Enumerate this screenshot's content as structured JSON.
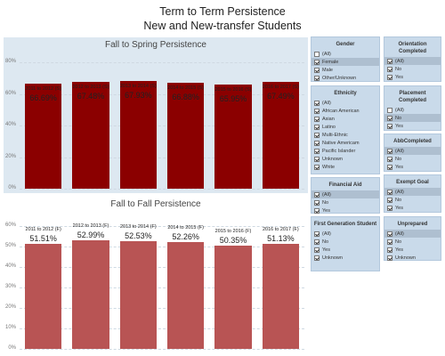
{
  "header": {
    "title_line1": "Term to Term Persistence",
    "title_line2": "New and New-transfer Students"
  },
  "colors": {
    "spring_bar": "#8b0000",
    "fall_bar": "#b85454",
    "chart1_bg": "#dde8f1",
    "filter_bg": "#c9daea",
    "filter_selected": "#aebfd0"
  },
  "chart_data": [
    {
      "type": "bar",
      "title": "Fall to Spring Persistence",
      "categories": [
        "2011 to 2012 (S)",
        "2012 to 2013 (S)",
        "2013 to 2014 (S)",
        "2014 to 2015 (S)",
        "2015 to 2016 (S)",
        "2016 to 2017 (S)"
      ],
      "values": [
        66.69,
        67.48,
        67.93,
        66.88,
        65.95,
        67.49
      ],
      "value_labels": [
        "66.69%",
        "67.48%",
        "67.93%",
        "66.88%",
        "65.95%",
        "67.49%"
      ],
      "ylim": [
        0,
        80
      ],
      "yticks": [
        "80%",
        "60%",
        "40%",
        "20%",
        "0%"
      ],
      "ytick_values": [
        80,
        60,
        40,
        20,
        0
      ],
      "grid": true
    },
    {
      "type": "bar",
      "title": "Fall to Fall Persistence",
      "categories": [
        "2011 to 2012 (F)",
        "2012 to 2013 (F)",
        "2013 to 2014 (F)",
        "2014 to 2015 (F)",
        "2015 to 2016 (F)",
        "2016 to 2017 (F)"
      ],
      "values": [
        51.51,
        52.99,
        52.53,
        52.26,
        50.35,
        51.13
      ],
      "value_labels": [
        "51.51%",
        "52.99%",
        "52.53%",
        "52.26%",
        "50.35%",
        "51.13%"
      ],
      "ylim": [
        0,
        60
      ],
      "yticks": [
        "60%",
        "50%",
        "40%",
        "30%",
        "20%",
        "10%",
        "0%"
      ],
      "ytick_values": [
        60,
        50,
        40,
        30,
        20,
        10,
        0
      ],
      "grid": true
    }
  ],
  "filters": {
    "gender": {
      "title": "Gender",
      "options": [
        {
          "label": "(All)",
          "checked": false,
          "selected": false
        },
        {
          "label": "Female",
          "checked": true,
          "selected": true
        },
        {
          "label": "Male",
          "checked": true,
          "selected": false
        },
        {
          "label": "Other/Unknown",
          "checked": true,
          "selected": false
        }
      ]
    },
    "orientation": {
      "title": "Orientation Completed",
      "options": [
        {
          "label": "(All)",
          "checked": true,
          "selected": true
        },
        {
          "label": "No",
          "checked": true,
          "selected": false
        },
        {
          "label": "Yes",
          "checked": true,
          "selected": false
        }
      ]
    },
    "ethnicity": {
      "title": "Ethnicity",
      "options": [
        {
          "label": "(All)",
          "checked": true,
          "selected": false
        },
        {
          "label": "African American",
          "checked": true,
          "selected": false
        },
        {
          "label": "Asian",
          "checked": true,
          "selected": false
        },
        {
          "label": "Latino",
          "checked": true,
          "selected": false
        },
        {
          "label": "Multi-Ethnic",
          "checked": true,
          "selected": false
        },
        {
          "label": "Native Americam",
          "checked": true,
          "selected": false
        },
        {
          "label": "Pacific Islander",
          "checked": true,
          "selected": false
        },
        {
          "label": "Unknown",
          "checked": true,
          "selected": false
        },
        {
          "label": "White",
          "checked": true,
          "selected": false
        }
      ]
    },
    "placement": {
      "title": "Placement Completed",
      "options": [
        {
          "label": "(All)",
          "checked": false,
          "selected": false
        },
        {
          "label": "No",
          "checked": true,
          "selected": true
        },
        {
          "label": "Yes",
          "checked": true,
          "selected": false
        }
      ]
    },
    "abbcompleted": {
      "title": "AbbCompleted",
      "options": [
        {
          "label": "(All)",
          "checked": true,
          "selected": true
        },
        {
          "label": "No",
          "checked": true,
          "selected": false
        },
        {
          "label": "Yes",
          "checked": true,
          "selected": false
        }
      ]
    },
    "financial_aid": {
      "title": "Financial Aid",
      "options": [
        {
          "label": "(All)",
          "checked": true,
          "selected": true
        },
        {
          "label": "No",
          "checked": true,
          "selected": false
        },
        {
          "label": "Yes",
          "checked": true,
          "selected": false
        }
      ]
    },
    "exempt_goal": {
      "title": "Exempt Goal",
      "options": [
        {
          "label": "(All)",
          "checked": true,
          "selected": true
        },
        {
          "label": "No",
          "checked": true,
          "selected": false
        },
        {
          "label": "Yes",
          "checked": true,
          "selected": false
        }
      ]
    },
    "first_generation": {
      "title": "First Generation Student",
      "options": [
        {
          "label": "(All)",
          "checked": true,
          "selected": false
        },
        {
          "label": "No",
          "checked": true,
          "selected": false
        },
        {
          "label": "Yes",
          "checked": true,
          "selected": false
        },
        {
          "label": "Unknown",
          "checked": true,
          "selected": false
        }
      ]
    },
    "unprepared": {
      "title": "Unprepared",
      "options": [
        {
          "label": "(All)",
          "checked": true,
          "selected": true
        },
        {
          "label": "No",
          "checked": true,
          "selected": false
        },
        {
          "label": "Yes",
          "checked": true,
          "selected": false
        },
        {
          "label": "Unknown",
          "checked": true,
          "selected": false
        }
      ]
    }
  }
}
